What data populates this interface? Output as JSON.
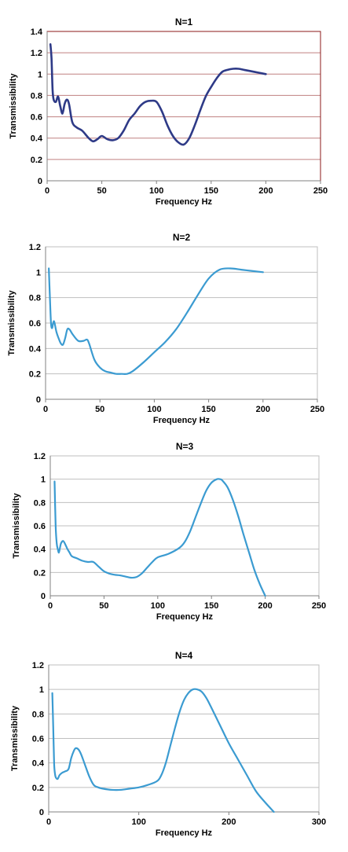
{
  "chart_data": [
    {
      "type": "line",
      "title": "N=1",
      "xlabel": "Frequency Hz",
      "ylabel": "Transmissibility",
      "xlim": [
        0,
        250
      ],
      "ylim": [
        0,
        1.4
      ],
      "xticks": [
        "0",
        "50",
        "100",
        "150",
        "200",
        "250"
      ],
      "yticks": [
        "0",
        "0.2",
        "0.4",
        "0.6",
        "0.8",
        "1",
        "1.2",
        "1.4"
      ],
      "color": "#2e3a87",
      "border_color": "#8b1a1a",
      "grid_color": "#c08080",
      "series": [
        {
          "x": [
            3,
            4,
            5,
            6,
            8,
            10,
            12,
            14,
            16,
            18,
            20,
            23,
            27,
            32,
            38,
            42,
            46,
            50,
            55,
            60,
            65,
            70,
            75,
            80,
            85,
            90,
            95,
            100,
            105,
            110,
            115,
            120,
            125,
            130,
            135,
            140,
            145,
            150,
            155,
            160,
            165,
            170,
            175,
            180,
            185,
            190,
            195,
            200
          ],
          "y": [
            1.28,
            1.15,
            0.85,
            0.76,
            0.74,
            0.79,
            0.7,
            0.63,
            0.72,
            0.76,
            0.72,
            0.55,
            0.5,
            0.47,
            0.4,
            0.37,
            0.39,
            0.42,
            0.39,
            0.38,
            0.4,
            0.47,
            0.57,
            0.63,
            0.7,
            0.74,
            0.75,
            0.74,
            0.65,
            0.52,
            0.42,
            0.36,
            0.34,
            0.4,
            0.52,
            0.66,
            0.79,
            0.88,
            0.96,
            1.02,
            1.04,
            1.05,
            1.05,
            1.04,
            1.03,
            1.02,
            1.01,
            1.0
          ]
        }
      ]
    },
    {
      "type": "line",
      "title": "N=2",
      "xlabel": "Frequency Hz",
      "ylabel": "Transmissibility",
      "xlim": [
        0,
        250
      ],
      "ylim": [
        0,
        1.2
      ],
      "xticks": [
        "0",
        "50",
        "100",
        "150",
        "200",
        "250"
      ],
      "yticks": [
        "0",
        "0.2",
        "0.4",
        "0.6",
        "0.8",
        "1",
        "1.2"
      ],
      "color": "#3b9bd1",
      "border_color": "#bfbfbf",
      "grid_color": "#bfbfbf",
      "series": [
        {
          "x": [
            3,
            4,
            5,
            6,
            7,
            8,
            10,
            12,
            14,
            16,
            18,
            20,
            22,
            25,
            30,
            35,
            38,
            40,
            45,
            50,
            55,
            60,
            65,
            70,
            75,
            80,
            90,
            100,
            110,
            120,
            130,
            140,
            150,
            160,
            170,
            180,
            190,
            200
          ],
          "y": [
            1.03,
            0.8,
            0.6,
            0.56,
            0.6,
            0.61,
            0.53,
            0.48,
            0.44,
            0.43,
            0.48,
            0.55,
            0.55,
            0.51,
            0.46,
            0.46,
            0.47,
            0.44,
            0.31,
            0.25,
            0.22,
            0.21,
            0.2,
            0.2,
            0.2,
            0.22,
            0.29,
            0.37,
            0.45,
            0.55,
            0.68,
            0.82,
            0.95,
            1.02,
            1.03,
            1.02,
            1.01,
            1.0
          ]
        }
      ]
    },
    {
      "type": "line",
      "title": "N=3",
      "xlabel": "Frequency Hz",
      "ylabel": "Transmissibility",
      "xlim": [
        0,
        250
      ],
      "ylim": [
        0,
        1.2
      ],
      "xticks": [
        "0",
        "50",
        "100",
        "150",
        "200",
        "250"
      ],
      "yticks": [
        "0",
        "0.2",
        "0.4",
        "0.6",
        "0.8",
        "1",
        "1.2"
      ],
      "color": "#3b9bd1",
      "border_color": "#bfbfbf",
      "grid_color": "#bfbfbf",
      "series": [
        {
          "x": [
            4,
            5,
            6,
            7,
            8,
            9,
            10,
            12,
            14,
            16,
            18,
            20,
            25,
            30,
            35,
            40,
            45,
            50,
            55,
            60,
            65,
            70,
            75,
            80,
            85,
            90,
            95,
            100,
            110,
            120,
            125,
            130,
            135,
            140,
            145,
            150,
            155,
            158,
            160,
            165,
            170,
            175,
            180,
            185,
            190,
            195,
            200
          ],
          "y": [
            0.98,
            0.6,
            0.45,
            0.4,
            0.37,
            0.41,
            0.45,
            0.47,
            0.44,
            0.4,
            0.37,
            0.34,
            0.32,
            0.3,
            0.29,
            0.29,
            0.25,
            0.21,
            0.19,
            0.18,
            0.175,
            0.165,
            0.155,
            0.16,
            0.19,
            0.24,
            0.29,
            0.33,
            0.36,
            0.41,
            0.46,
            0.55,
            0.67,
            0.79,
            0.9,
            0.97,
            1.0,
            1.0,
            0.99,
            0.93,
            0.82,
            0.68,
            0.52,
            0.37,
            0.22,
            0.1,
            0.0
          ]
        }
      ]
    },
    {
      "type": "line",
      "title": "N=4",
      "xlabel": "Frequency Hz",
      "ylabel": "Transmissibility",
      "xlim": [
        0,
        300
      ],
      "ylim": [
        0,
        1.2
      ],
      "xticks": [
        "0",
        "100",
        "200",
        "300"
      ],
      "yticks": [
        "0",
        "0.2",
        "0.4",
        "0.6",
        "0.8",
        "1",
        "1.2"
      ],
      "color": "#3b9bd1",
      "border_color": "#bfbfbf",
      "grid_color": "#bfbfbf",
      "series": [
        {
          "x": [
            4,
            5,
            6,
            7,
            8,
            10,
            12,
            15,
            18,
            22,
            25,
            28,
            30,
            33,
            36,
            40,
            45,
            50,
            55,
            60,
            70,
            80,
            90,
            100,
            110,
            120,
            125,
            130,
            135,
            140,
            145,
            150,
            155,
            160,
            165,
            170,
            175,
            180,
            190,
            200,
            210,
            220,
            230,
            240,
            250
          ],
          "y": [
            0.97,
            0.7,
            0.4,
            0.31,
            0.28,
            0.27,
            0.3,
            0.32,
            0.33,
            0.35,
            0.44,
            0.5,
            0.52,
            0.51,
            0.47,
            0.39,
            0.29,
            0.22,
            0.2,
            0.19,
            0.18,
            0.18,
            0.19,
            0.2,
            0.22,
            0.25,
            0.3,
            0.4,
            0.54,
            0.68,
            0.81,
            0.91,
            0.97,
            1.0,
            1.0,
            0.98,
            0.93,
            0.86,
            0.71,
            0.56,
            0.43,
            0.3,
            0.17,
            0.08,
            0.0
          ]
        }
      ]
    }
  ]
}
